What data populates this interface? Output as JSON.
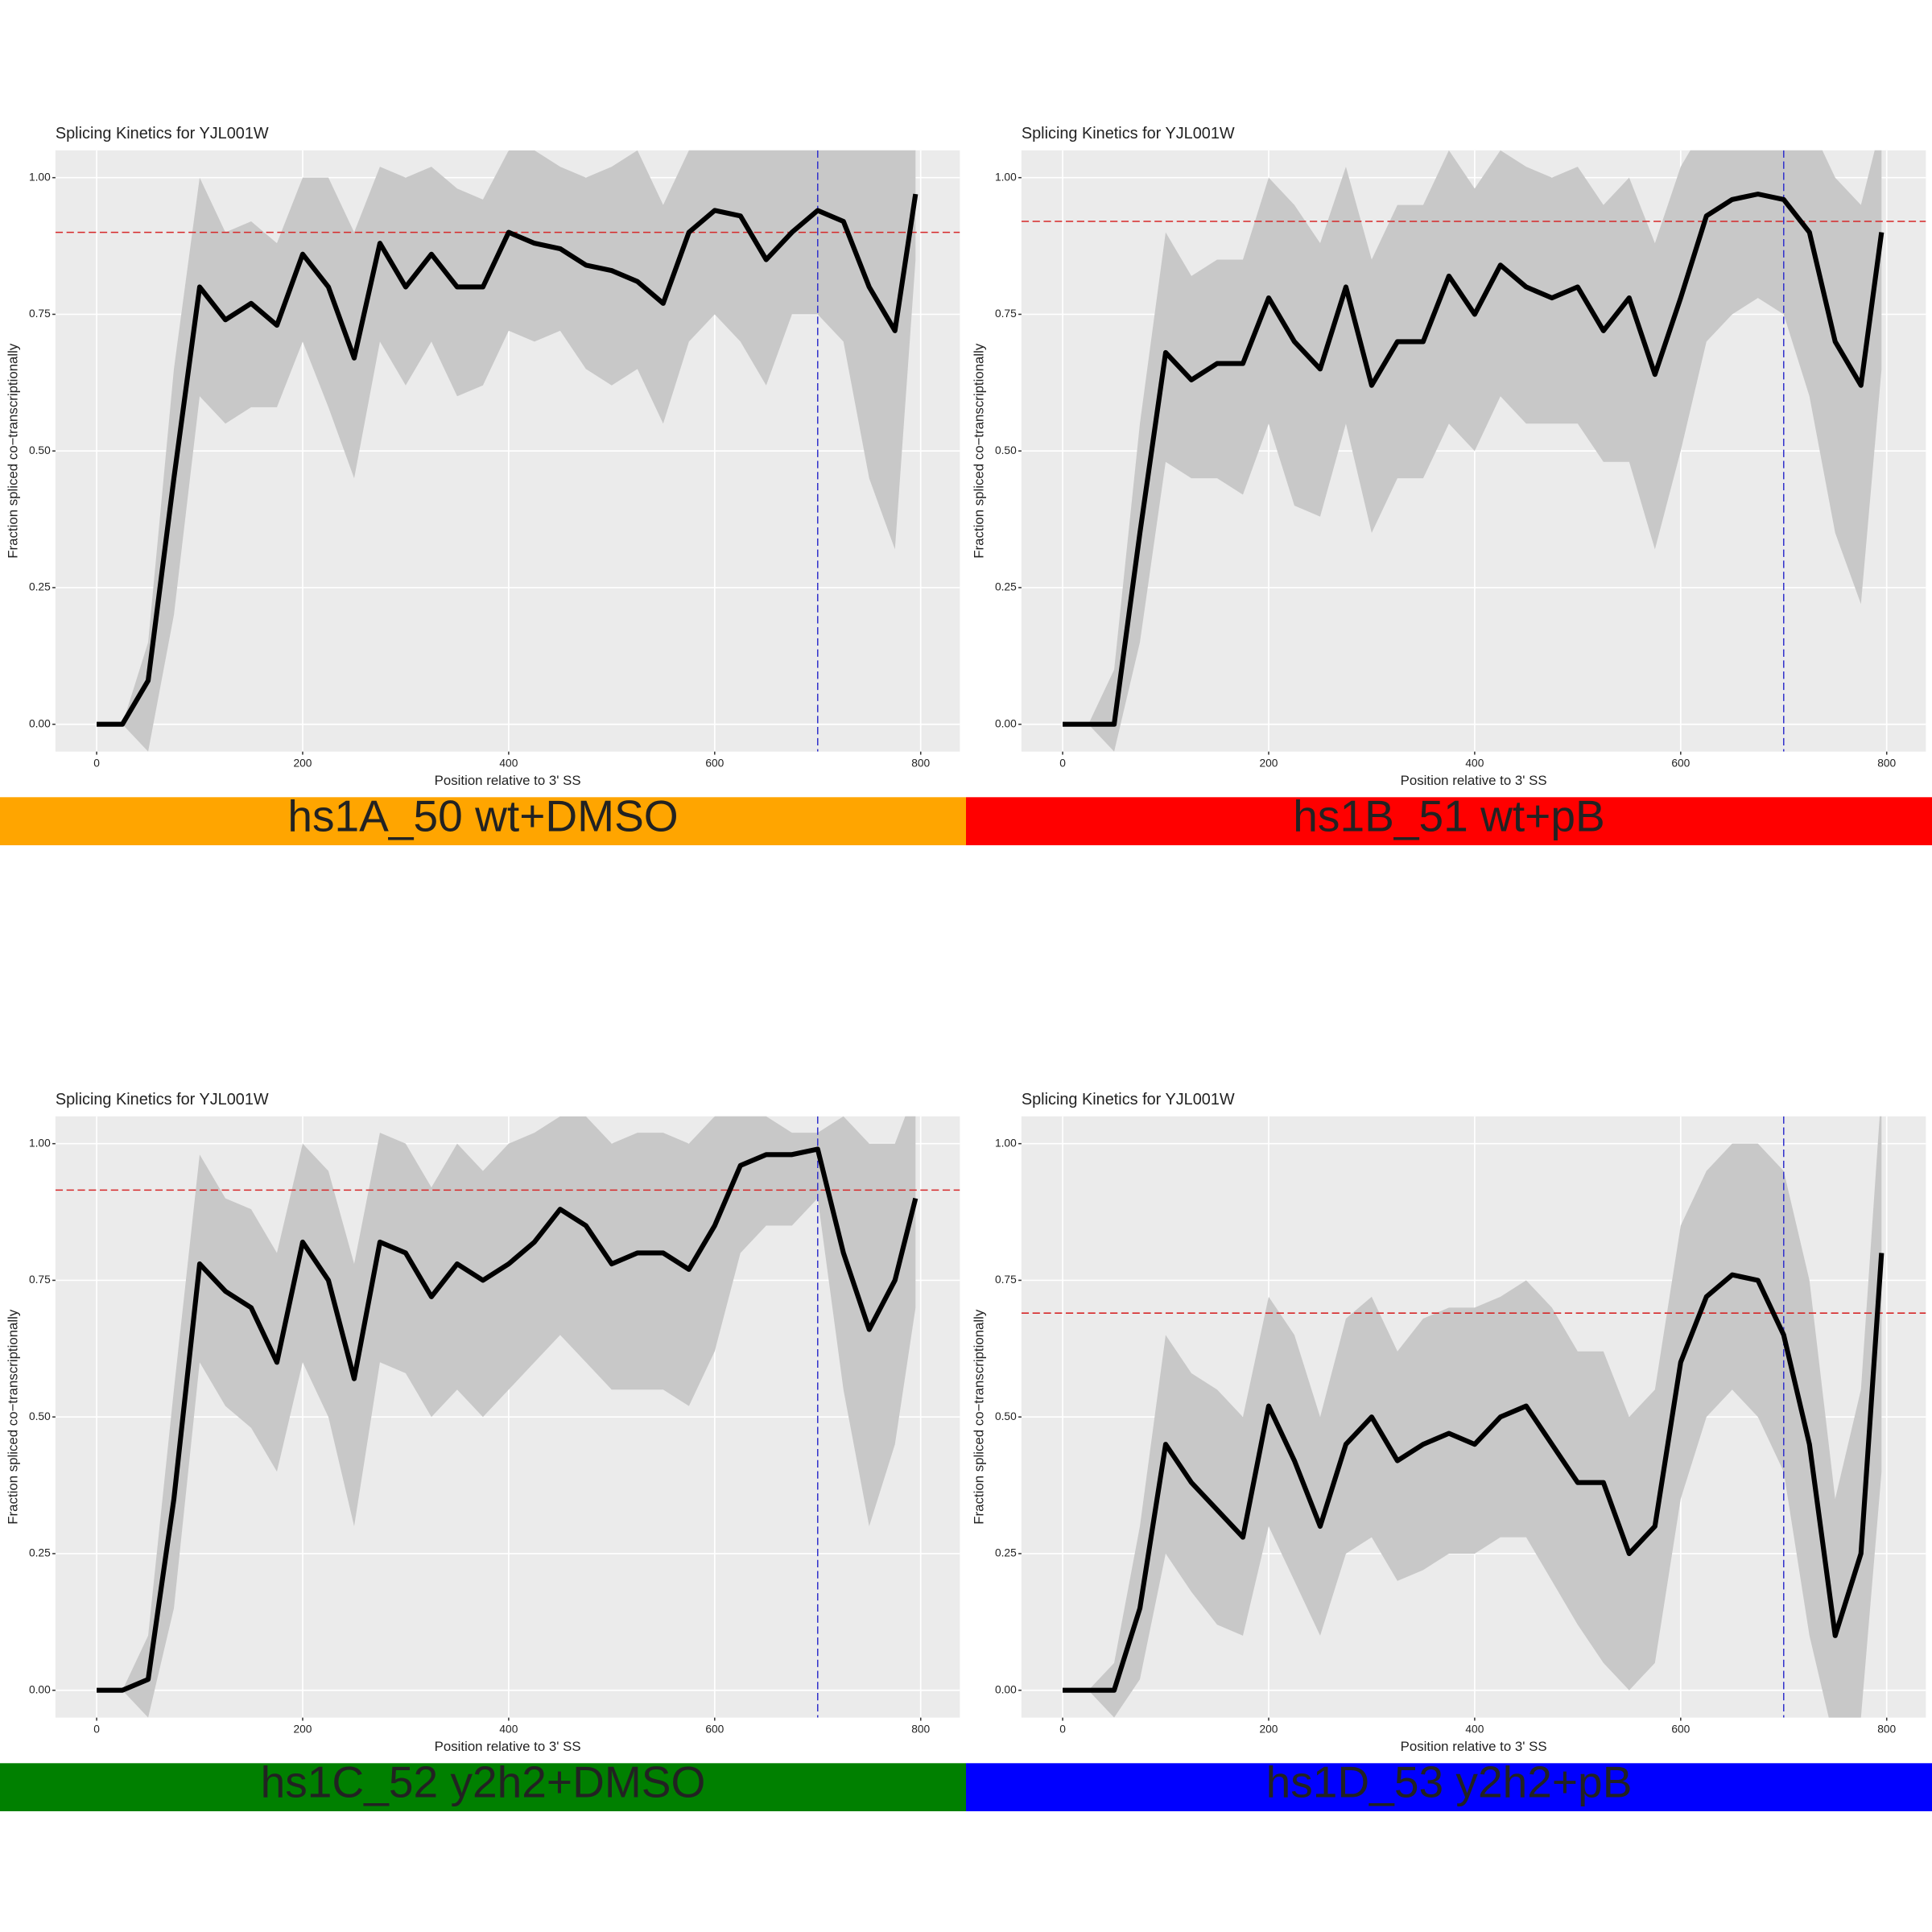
{
  "chart_data": [
    {
      "type": "line",
      "title": "Splicing Kinetics for YJL001W",
      "xlabel": "Position relative to 3' SS",
      "ylabel": "Fraction spliced co−transcriptionally",
      "x": [
        0,
        25,
        50,
        75,
        100,
        125,
        150,
        175,
        200,
        225,
        250,
        275,
        300,
        325,
        350,
        375,
        400,
        425,
        450,
        475,
        500,
        525,
        550,
        575,
        600,
        625,
        650,
        675,
        700,
        725,
        750,
        775,
        795
      ],
      "series": [
        {
          "color": "#000000",
          "values": [
            0,
            0,
            0.08,
            0.45,
            0.8,
            0.74,
            0.77,
            0.73,
            0.86,
            0.8,
            0.67,
            0.88,
            0.8,
            0.86,
            0.8,
            0.8,
            0.9,
            0.88,
            0.87,
            0.84,
            0.83,
            0.81,
            0.77,
            0.9,
            0.94,
            0.93,
            0.85,
            0.9,
            0.94,
            0.92,
            0.8,
            0.72,
            0.97
          ]
        }
      ],
      "band": {
        "color": "#c8c8c8",
        "lower": [
          0,
          0,
          -0.05,
          0.2,
          0.6,
          0.55,
          0.58,
          0.58,
          0.7,
          0.58,
          0.45,
          0.7,
          0.62,
          0.7,
          0.6,
          0.62,
          0.72,
          0.7,
          0.72,
          0.65,
          0.62,
          0.65,
          0.55,
          0.7,
          0.75,
          0.7,
          0.62,
          0.75,
          0.75,
          0.7,
          0.45,
          0.32,
          0.85
        ],
        "upper": [
          0,
          0,
          0.15,
          0.65,
          1.0,
          0.9,
          0.92,
          0.88,
          1.0,
          1.0,
          0.9,
          1.02,
          1.0,
          1.02,
          0.98,
          0.96,
          1.05,
          1.05,
          1.02,
          1.0,
          1.02,
          1.05,
          0.95,
          1.05,
          1.1,
          1.1,
          1.1,
          1.1,
          1.1,
          1.1,
          1.1,
          1.1,
          1.1
        ]
      },
      "hline": {
        "value": 0.9,
        "color": "#d62728"
      },
      "vline": {
        "value": 700,
        "color": "#3333cc"
      },
      "xlim": [
        -40,
        838
      ],
      "ylim": [
        -0.05,
        1.05
      ],
      "xticks": [
        0,
        200,
        400,
        600,
        800
      ],
      "yticks": [
        {
          "value": 0,
          "label": "0.00"
        },
        {
          "value": 0.25,
          "label": "0.25"
        },
        {
          "value": 0.5,
          "label": "0.50"
        },
        {
          "value": 0.75,
          "label": "0.75"
        },
        {
          "value": 1,
          "label": "1.00"
        }
      ],
      "grid": true,
      "caption": {
        "text": "hs1A_50 wt+DMSO",
        "color": "#ffa500"
      }
    },
    {
      "type": "line",
      "title": "Splicing Kinetics for YJL001W",
      "xlabel": "Position relative to 3' SS",
      "ylabel": "Fraction spliced co−transcriptionally",
      "x": [
        0,
        25,
        50,
        75,
        100,
        125,
        150,
        175,
        200,
        225,
        250,
        275,
        300,
        325,
        350,
        375,
        400,
        425,
        450,
        475,
        500,
        525,
        550,
        575,
        600,
        625,
        650,
        675,
        700,
        725,
        750,
        775,
        795
      ],
      "series": [
        {
          "color": "#000000",
          "values": [
            0,
            0,
            0,
            0.35,
            0.68,
            0.63,
            0.66,
            0.66,
            0.78,
            0.7,
            0.65,
            0.8,
            0.62,
            0.7,
            0.7,
            0.82,
            0.75,
            0.84,
            0.8,
            0.78,
            0.8,
            0.72,
            0.78,
            0.64,
            0.78,
            0.93,
            0.96,
            0.97,
            0.96,
            0.9,
            0.7,
            0.62,
            0.9
          ]
        }
      ],
      "band": {
        "color": "#c8c8c8",
        "lower": [
          0,
          0,
          -0.05,
          0.15,
          0.48,
          0.45,
          0.45,
          0.42,
          0.55,
          0.4,
          0.38,
          0.55,
          0.35,
          0.45,
          0.45,
          0.55,
          0.5,
          0.6,
          0.55,
          0.55,
          0.55,
          0.48,
          0.48,
          0.32,
          0.5,
          0.7,
          0.75,
          0.78,
          0.75,
          0.6,
          0.35,
          0.22,
          0.65
        ],
        "upper": [
          0,
          0,
          0.1,
          0.55,
          0.9,
          0.82,
          0.85,
          0.85,
          1.0,
          0.95,
          0.88,
          1.02,
          0.85,
          0.95,
          0.95,
          1.05,
          0.98,
          1.05,
          1.02,
          1.0,
          1.02,
          0.95,
          1.0,
          0.88,
          1.02,
          1.1,
          1.1,
          1.1,
          1.1,
          1.1,
          1.0,
          0.95,
          1.1
        ]
      },
      "hline": {
        "value": 0.92,
        "color": "#d62728"
      },
      "vline": {
        "value": 700,
        "color": "#3333cc"
      },
      "xlim": [
        -40,
        838
      ],
      "ylim": [
        -0.05,
        1.05
      ],
      "xticks": [
        0,
        200,
        400,
        600,
        800
      ],
      "yticks": [
        {
          "value": 0,
          "label": "0.00"
        },
        {
          "value": 0.25,
          "label": "0.25"
        },
        {
          "value": 0.5,
          "label": "0.50"
        },
        {
          "value": 0.75,
          "label": "0.75"
        },
        {
          "value": 1,
          "label": "1.00"
        }
      ],
      "grid": true,
      "caption": {
        "text": "hs1B_51 wt+pB",
        "color": "#ff0000"
      }
    },
    {
      "type": "line",
      "title": "Splicing Kinetics for YJL001W",
      "xlabel": "Position relative to 3' SS",
      "ylabel": "Fraction spliced co−transcriptionally",
      "x": [
        0,
        25,
        50,
        75,
        100,
        125,
        150,
        175,
        200,
        225,
        250,
        275,
        300,
        325,
        350,
        375,
        400,
        425,
        450,
        475,
        500,
        525,
        550,
        575,
        600,
        625,
        650,
        675,
        700,
        725,
        750,
        775,
        795
      ],
      "series": [
        {
          "color": "#000000",
          "values": [
            0,
            0,
            0.02,
            0.35,
            0.78,
            0.73,
            0.7,
            0.6,
            0.82,
            0.75,
            0.57,
            0.82,
            0.8,
            0.72,
            0.78,
            0.75,
            0.78,
            0.82,
            0.88,
            0.85,
            0.78,
            0.8,
            0.8,
            0.77,
            0.85,
            0.96,
            0.98,
            0.98,
            0.99,
            0.8,
            0.66,
            0.75,
            0.9
          ]
        }
      ],
      "band": {
        "color": "#c8c8c8",
        "lower": [
          0,
          0,
          -0.05,
          0.15,
          0.6,
          0.52,
          0.48,
          0.4,
          0.6,
          0.5,
          0.3,
          0.6,
          0.58,
          0.5,
          0.55,
          0.5,
          0.55,
          0.6,
          0.65,
          0.6,
          0.55,
          0.55,
          0.55,
          0.52,
          0.62,
          0.8,
          0.85,
          0.85,
          0.9,
          0.55,
          0.3,
          0.45,
          0.7
        ],
        "upper": [
          0,
          0,
          0.1,
          0.55,
          0.98,
          0.9,
          0.88,
          0.8,
          1.0,
          0.95,
          0.78,
          1.02,
          1.0,
          0.92,
          1.0,
          0.95,
          1.0,
          1.02,
          1.05,
          1.05,
          1.0,
          1.02,
          1.02,
          1.0,
          1.05,
          1.1,
          1.05,
          1.02,
          1.02,
          1.05,
          1.0,
          1.0,
          1.1
        ]
      },
      "hline": {
        "value": 0.915,
        "color": "#d62728"
      },
      "vline": {
        "value": 700,
        "color": "#3333cc"
      },
      "xlim": [
        -40,
        838
      ],
      "ylim": [
        -0.05,
        1.05
      ],
      "xticks": [
        0,
        200,
        400,
        600,
        800
      ],
      "yticks": [
        {
          "value": 0,
          "label": "0.00"
        },
        {
          "value": 0.25,
          "label": "0.25"
        },
        {
          "value": 0.5,
          "label": "0.50"
        },
        {
          "value": 0.75,
          "label": "0.75"
        },
        {
          "value": 1,
          "label": "1.00"
        }
      ],
      "grid": true,
      "caption": {
        "text": "hs1C_52 y2h2+DMSO",
        "color": "#008000"
      }
    },
    {
      "type": "line",
      "title": "Splicing Kinetics for YJL001W",
      "xlabel": "Position relative to 3' SS",
      "ylabel": "Fraction spliced co−transcriptionally",
      "x": [
        0,
        25,
        50,
        75,
        100,
        125,
        150,
        175,
        200,
        225,
        250,
        275,
        300,
        325,
        350,
        375,
        400,
        425,
        450,
        475,
        500,
        525,
        550,
        575,
        600,
        625,
        650,
        675,
        700,
        725,
        750,
        775,
        795
      ],
      "series": [
        {
          "color": "#000000",
          "values": [
            0,
            0,
            0,
            0.15,
            0.45,
            0.38,
            0.33,
            0.28,
            0.52,
            0.42,
            0.3,
            0.45,
            0.5,
            0.42,
            0.45,
            0.47,
            0.45,
            0.5,
            0.52,
            0.45,
            0.38,
            0.38,
            0.25,
            0.3,
            0.6,
            0.72,
            0.76,
            0.75,
            0.65,
            0.45,
            0.1,
            0.25,
            0.8
          ]
        }
      ],
      "band": {
        "color": "#c8c8c8",
        "lower": [
          0,
          0,
          -0.05,
          0.02,
          0.25,
          0.18,
          0.12,
          0.1,
          0.3,
          0.2,
          0.1,
          0.25,
          0.28,
          0.2,
          0.22,
          0.25,
          0.25,
          0.28,
          0.28,
          0.2,
          0.12,
          0.05,
          0,
          0.05,
          0.35,
          0.5,
          0.55,
          0.5,
          0.4,
          0.1,
          -0.1,
          -0.05,
          0.4
        ],
        "upper": [
          0,
          0,
          0.05,
          0.3,
          0.65,
          0.58,
          0.55,
          0.5,
          0.72,
          0.65,
          0.5,
          0.68,
          0.72,
          0.62,
          0.68,
          0.7,
          0.7,
          0.72,
          0.75,
          0.7,
          0.62,
          0.62,
          0.5,
          0.55,
          0.85,
          0.95,
          1.0,
          1.0,
          0.95,
          0.75,
          0.35,
          0.55,
          1.1
        ]
      },
      "hline": {
        "value": 0.69,
        "color": "#d62728"
      },
      "vline": {
        "value": 700,
        "color": "#3333cc"
      },
      "xlim": [
        -40,
        838
      ],
      "ylim": [
        -0.05,
        1.05
      ],
      "xticks": [
        0,
        200,
        400,
        600,
        800
      ],
      "yticks": [
        {
          "value": 0,
          "label": "0.00"
        },
        {
          "value": 0.25,
          "label": "0.25"
        },
        {
          "value": 0.5,
          "label": "0.50"
        },
        {
          "value": 0.75,
          "label": "0.75"
        },
        {
          "value": 1,
          "label": "1.00"
        }
      ],
      "grid": true,
      "caption": {
        "text": "hs1D_53 y2h2+pB",
        "color": "#0000ff"
      }
    }
  ]
}
